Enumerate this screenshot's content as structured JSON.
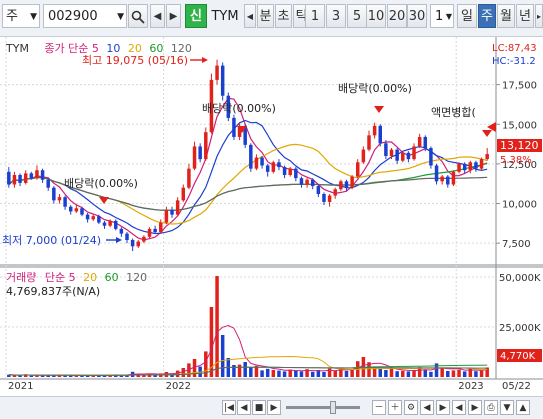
{
  "toolbar": {
    "market": "주",
    "code": "002900",
    "stock_badge": "신",
    "name": "TYM",
    "unit_minute": "분",
    "unit_second": "초",
    "unit_tick": "틱",
    "periods": [
      "1",
      "3",
      "5",
      "10",
      "20",
      "30"
    ],
    "count": "1",
    "day": "일",
    "week": "주",
    "month": "월",
    "year": "년"
  },
  "price_panel": {
    "name": "TYM",
    "ma_label": "종가 단순",
    "ma_periods": [
      "5",
      "10",
      "20",
      "60",
      "120"
    ],
    "lc": "LC:87,43",
    "hc": "HC:-31.2",
    "current_price": "13,120",
    "current_pct": "5.38%",
    "high_note": "최고 19,075 (05/16)",
    "low_note": "최저 7,000 (01/24)",
    "events": [
      "배당락(0.00%)",
      "배당락(0.00%)",
      "배당락(0.00%)",
      "액면병합("
    ],
    "y_ticks": [
      "17,500",
      "15,000",
      "12,500",
      "10,000",
      "7,500"
    ]
  },
  "volume_panel": {
    "label": "거래량",
    "ma_label": "단순",
    "ma_periods": [
      "5",
      "20",
      "60",
      "120"
    ],
    "value": "4,769,837주(N/A)",
    "current": "4,770K",
    "y_ticks": [
      "50,000K",
      "25,000K"
    ]
  },
  "x_axis": [
    "2021",
    "2022",
    "2023",
    "05/22"
  ],
  "colors": {
    "up": "#e0221b",
    "down": "#1b3fcf",
    "ma5": "#d01f7a",
    "ma10": "#1b3fcf",
    "ma20": "#e0a800",
    "ma60": "#1f9a2f",
    "ma120": "#666666"
  },
  "chart_data": {
    "type": "candlestick",
    "y_range": [
      6500,
      20000
    ],
    "annotations": [
      "최고 19,075 (05/16)",
      "최저 7,000 (01/24)"
    ],
    "candles": [
      [
        12000,
        11200,
        12300,
        11000
      ],
      [
        11200,
        11800,
        12000,
        11000
      ],
      [
        11800,
        11300,
        11900,
        11100
      ],
      [
        11300,
        11900,
        12100,
        11200
      ],
      [
        11900,
        11600,
        12000,
        11500
      ],
      [
        11600,
        12100,
        12400,
        11500
      ],
      [
        12100,
        11500,
        12200,
        11300
      ],
      [
        11500,
        11000,
        11600,
        10800
      ],
      [
        11000,
        10200,
        11100,
        10000
      ],
      [
        10200,
        10400,
        10600,
        10000
      ],
      [
        10400,
        9800,
        10500,
        9600
      ],
      [
        9800,
        9500,
        9900,
        9300
      ],
      [
        9500,
        9700,
        9900,
        9400
      ],
      [
        9700,
        9300,
        9800,
        9200
      ],
      [
        9300,
        9000,
        9400,
        8800
      ],
      [
        9000,
        9200,
        9300,
        8900
      ],
      [
        9200,
        8800,
        9300,
        8700
      ],
      [
        8800,
        8600,
        8900,
        8400
      ],
      [
        8600,
        8900,
        9000,
        8500
      ],
      [
        8900,
        8400,
        9000,
        8300
      ],
      [
        8400,
        8100,
        8500,
        7900
      ],
      [
        8100,
        7700,
        8200,
        7500
      ],
      [
        7700,
        7300,
        7800,
        7000
      ],
      [
        7300,
        7600,
        7700,
        7200
      ],
      [
        7600,
        7900,
        8000,
        7500
      ],
      [
        7900,
        8400,
        8500,
        7800
      ],
      [
        8400,
        8200,
        8600,
        8100
      ],
      [
        8200,
        8800,
        9000,
        8100
      ],
      [
        8800,
        9600,
        9800,
        8700
      ],
      [
        9600,
        9300,
        9800,
        9100
      ],
      [
        9300,
        10200,
        10400,
        9200
      ],
      [
        10200,
        11000,
        11200,
        10100
      ],
      [
        11000,
        12200,
        12500,
        10900
      ],
      [
        12200,
        13600,
        13900,
        12100
      ],
      [
        13600,
        12800,
        13800,
        12600
      ],
      [
        12800,
        14500,
        14800,
        12700
      ],
      [
        14500,
        17800,
        18200,
        14400
      ],
      [
        17800,
        18700,
        19075,
        17500
      ],
      [
        18700,
        16800,
        18900,
        16500
      ],
      [
        16800,
        15400,
        17000,
        15200
      ],
      [
        15400,
        14200,
        15600,
        14000
      ],
      [
        14200,
        14900,
        15100,
        14000
      ],
      [
        14900,
        13700,
        15000,
        13500
      ],
      [
        13700,
        12200,
        13800,
        12000
      ],
      [
        12200,
        12900,
        13100,
        12100
      ],
      [
        12900,
        12400,
        13000,
        12200
      ],
      [
        12400,
        12000,
        12500,
        11700
      ],
      [
        12000,
        12600,
        12700,
        11900
      ],
      [
        12600,
        12300,
        12800,
        12100
      ],
      [
        12300,
        11800,
        12400,
        11600
      ],
      [
        11800,
        12200,
        12300,
        11700
      ],
      [
        12200,
        11600,
        12300,
        11400
      ],
      [
        11600,
        11200,
        11700,
        11000
      ],
      [
        11200,
        11500,
        11600,
        11000
      ],
      [
        11500,
        11100,
        11600,
        10900
      ],
      [
        11100,
        10600,
        11200,
        10400
      ],
      [
        10600,
        10100,
        10700,
        9900
      ],
      [
        10100,
        10500,
        10600,
        9800
      ],
      [
        10500,
        10900,
        11000,
        10300
      ],
      [
        10900,
        11400,
        11500,
        10800
      ],
      [
        11400,
        11000,
        11500,
        10800
      ],
      [
        11000,
        11700,
        11800,
        10900
      ],
      [
        11700,
        12600,
        12800,
        11600
      ],
      [
        12600,
        13400,
        13600,
        12500
      ],
      [
        13400,
        14300,
        14600,
        13300
      ],
      [
        14300,
        14900,
        15100,
        14100
      ],
      [
        14900,
        13800,
        15000,
        13600
      ],
      [
        13800,
        13000,
        14000,
        12800
      ],
      [
        13000,
        13400,
        13500,
        12800
      ],
      [
        13400,
        12700,
        13500,
        12500
      ],
      [
        12700,
        13200,
        13300,
        12600
      ],
      [
        13200,
        12800,
        13300,
        12600
      ],
      [
        12800,
        13600,
        13800,
        12700
      ],
      [
        13600,
        14200,
        14400,
        13500
      ],
      [
        14200,
        13500,
        14300,
        13300
      ],
      [
        13500,
        12400,
        13600,
        12200
      ],
      [
        12400,
        11400,
        12500,
        11200
      ],
      [
        11400,
        11700,
        11800,
        11200
      ],
      [
        11700,
        11200,
        11800,
        11000
      ],
      [
        11200,
        12000,
        12100,
        11100
      ],
      [
        12000,
        12500,
        12600,
        11900
      ],
      [
        12500,
        12100,
        12600,
        11900
      ],
      [
        12100,
        12600,
        12700,
        11900
      ],
      [
        12600,
        12200,
        12700,
        12000
      ],
      [
        12200,
        12800,
        12900,
        12100
      ],
      [
        12800,
        13120,
        13500,
        12700
      ]
    ],
    "volumes_k": [
      1100,
      900,
      800,
      1300,
      700,
      1000,
      800,
      900,
      1200,
      800,
      900,
      700,
      800,
      900,
      700,
      1000,
      800,
      900,
      700,
      1300,
      1000,
      1200,
      2600,
      1500,
      1100,
      1600,
      900,
      1800,
      2500,
      1400,
      3200,
      4500,
      6800,
      9000,
      5200,
      12800,
      35000,
      50500,
      21000,
      9500,
      6000,
      6200,
      7500,
      4800,
      5600,
      3300,
      4100,
      3500,
      3200,
      2800,
      3700,
      3000,
      2800,
      3900,
      2600,
      3500,
      2500,
      4200,
      3000,
      4700,
      3000,
      3600,
      7900,
      10000,
      7400,
      5200,
      4000,
      3500,
      4200,
      2900,
      3100,
      2800,
      3300,
      4900,
      3800,
      2600,
      6800,
      4500,
      3000,
      3300,
      3700,
      2800,
      4500,
      2900,
      3200,
      4770
    ]
  }
}
